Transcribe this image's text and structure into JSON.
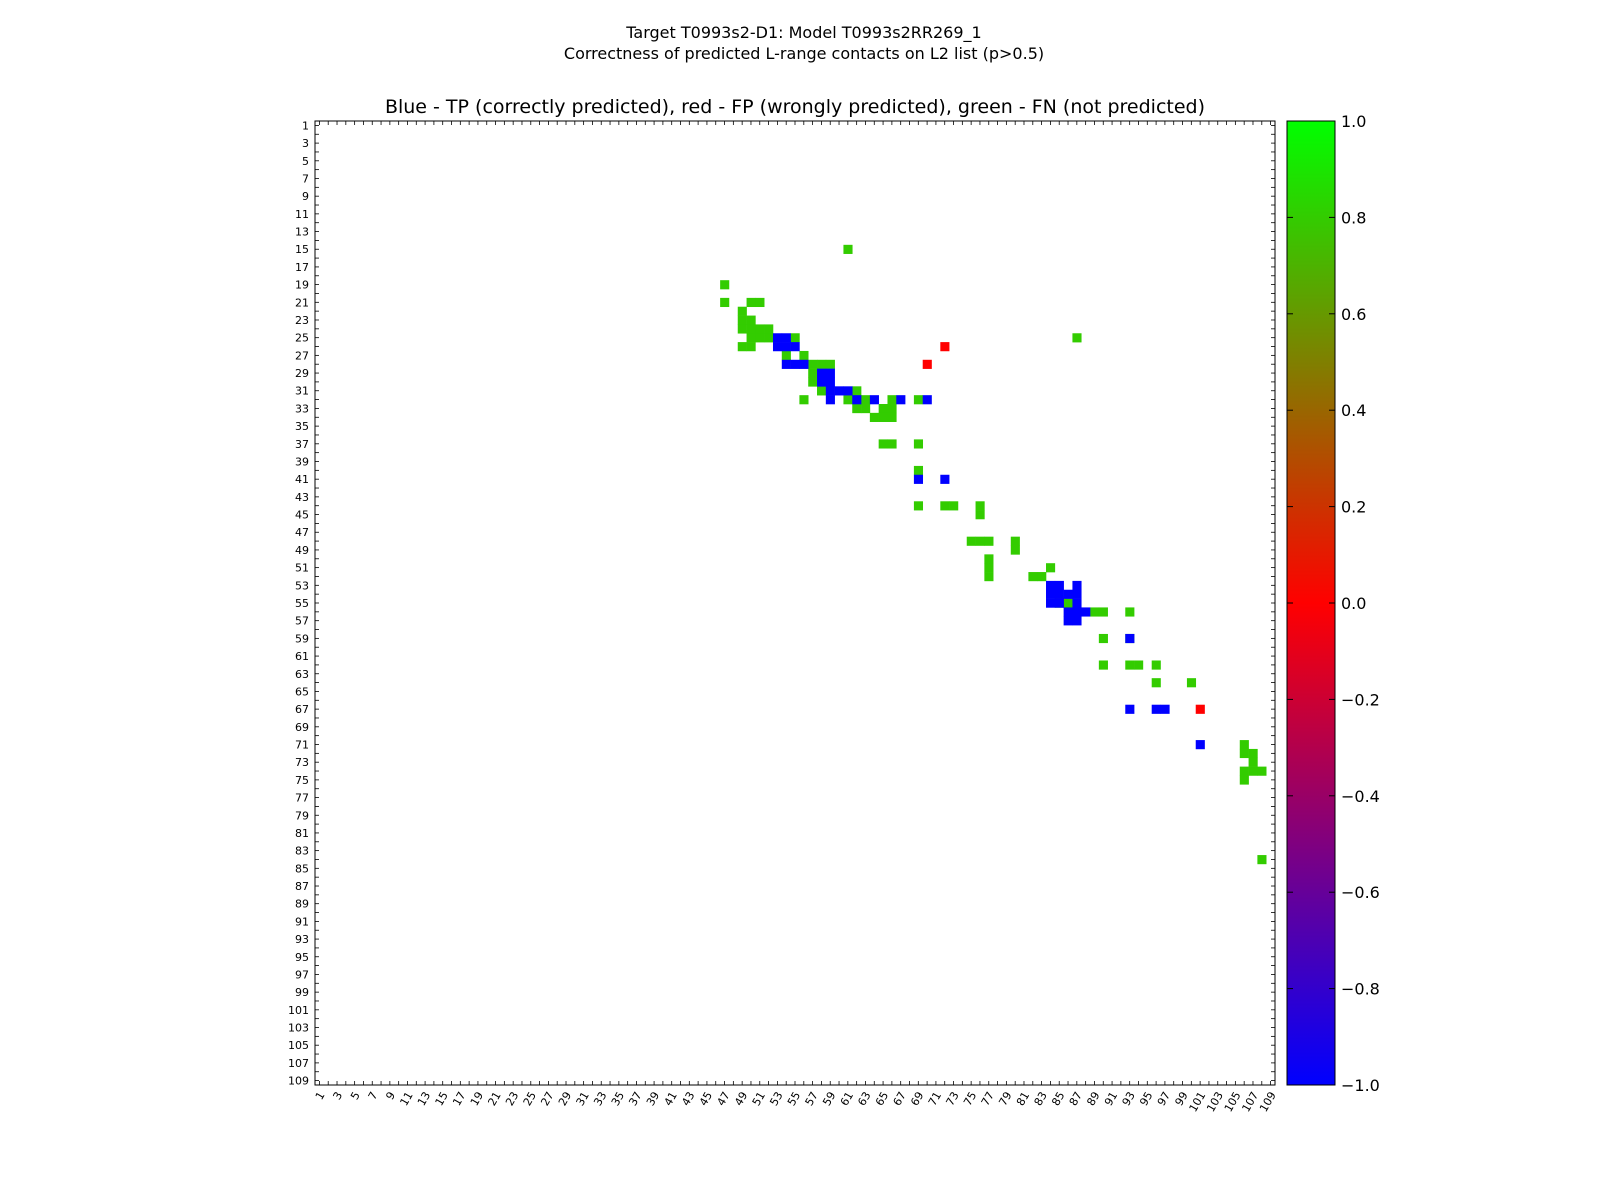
{
  "chart_data": {
    "type": "heatmap",
    "suptitle_line1": "Target T0993s2-D1: Model T0993s2RR269_1",
    "suptitle_line2": "Correctness of predicted L-range contacts on L2 list (p>0.5)",
    "title": "Blue - TP (correctly predicted), red - FP (wrongly predicted), green - FN (not predicted)",
    "axis_range": [
      1,
      109
    ],
    "x_tick_labels": [
      "1",
      "3",
      "5",
      "7",
      "9",
      "11",
      "13",
      "15",
      "17",
      "19",
      "21",
      "23",
      "25",
      "27",
      "29",
      "31",
      "33",
      "35",
      "37",
      "39",
      "41",
      "43",
      "45",
      "47",
      "49",
      "51",
      "53",
      "55",
      "57",
      "59",
      "61",
      "63",
      "65",
      "67",
      "69",
      "71",
      "73",
      "75",
      "77",
      "79",
      "81",
      "83",
      "85",
      "87",
      "89",
      "91",
      "93",
      "95",
      "97",
      "99",
      "101",
      "103",
      "105",
      "107",
      "109"
    ],
    "y_tick_labels": [
      "1",
      "3",
      "5",
      "7",
      "9",
      "11",
      "13",
      "15",
      "17",
      "19",
      "21",
      "23",
      "25",
      "27",
      "29",
      "31",
      "33",
      "35",
      "37",
      "39",
      "41",
      "43",
      "45",
      "47",
      "49",
      "51",
      "53",
      "55",
      "57",
      "59",
      "61",
      "63",
      "65",
      "67",
      "69",
      "71",
      "73",
      "75",
      "77",
      "79",
      "81",
      "83",
      "85",
      "87",
      "89",
      "91",
      "93",
      "95",
      "97",
      "99",
      "101",
      "103",
      "105",
      "107",
      "109"
    ],
    "colorbar": {
      "min": -1.0,
      "max": 1.0,
      "tick_labels": [
        "1.0",
        "0.8",
        "0.6",
        "0.4",
        "0.2",
        "0.0",
        "−0.2",
        "−0.4",
        "−0.6",
        "−0.8",
        "−1.0"
      ],
      "colors": [
        "#0000ff",
        "#ff0000",
        "#00ff00"
      ]
    },
    "legend": {
      "tp_color": "#0000ff",
      "fp_color": "#ff0000",
      "fn_color": "#33cc00"
    },
    "cell_values": {
      "tp": -1,
      "fp": 0,
      "fn": 0.8
    },
    "tp": [
      [
        25,
        53
      ],
      [
        25,
        54
      ],
      [
        26,
        53
      ],
      [
        26,
        54
      ],
      [
        26,
        55
      ],
      [
        28,
        54
      ],
      [
        28,
        55
      ],
      [
        28,
        56
      ],
      [
        29,
        58
      ],
      [
        29,
        59
      ],
      [
        30,
        58
      ],
      [
        30,
        59
      ],
      [
        31,
        59
      ],
      [
        31,
        60
      ],
      [
        31,
        61
      ],
      [
        32,
        62
      ],
      [
        32,
        64
      ],
      [
        32,
        67
      ],
      [
        32,
        70
      ],
      [
        32,
        59
      ],
      [
        41,
        69
      ],
      [
        41,
        72
      ],
      [
        53,
        84
      ],
      [
        53,
        85
      ],
      [
        53,
        87
      ],
      [
        54,
        84
      ],
      [
        54,
        85
      ],
      [
        54,
        86
      ],
      [
        54,
        87
      ],
      [
        55,
        84
      ],
      [
        55,
        85
      ],
      [
        55,
        87
      ],
      [
        56,
        86
      ],
      [
        56,
        87
      ],
      [
        56,
        88
      ],
      [
        57,
        86
      ],
      [
        57,
        87
      ],
      [
        59,
        93
      ],
      [
        67,
        93
      ],
      [
        67,
        96
      ],
      [
        67,
        97
      ],
      [
        71,
        101
      ]
    ],
    "fp": [
      [
        26,
        72
      ],
      [
        28,
        70
      ],
      [
        67,
        101
      ]
    ],
    "fn": [
      [
        15,
        61
      ],
      [
        19,
        47
      ],
      [
        21,
        47
      ],
      [
        21,
        50
      ],
      [
        21,
        51
      ],
      [
        22,
        49
      ],
      [
        23,
        49
      ],
      [
        23,
        50
      ],
      [
        24,
        49
      ],
      [
        24,
        50
      ],
      [
        24,
        51
      ],
      [
        24,
        52
      ],
      [
        25,
        50
      ],
      [
        25,
        51
      ],
      [
        25,
        52
      ],
      [
        25,
        55
      ],
      [
        25,
        87
      ],
      [
        26,
        49
      ],
      [
        26,
        50
      ],
      [
        27,
        54
      ],
      [
        27,
        56
      ],
      [
        28,
        57
      ],
      [
        28,
        58
      ],
      [
        28,
        59
      ],
      [
        29,
        57
      ],
      [
        30,
        57
      ],
      [
        31,
        58
      ],
      [
        31,
        62
      ],
      [
        32,
        56
      ],
      [
        32,
        61
      ],
      [
        32,
        62
      ],
      [
        32,
        63
      ],
      [
        32,
        66
      ],
      [
        32,
        69
      ],
      [
        33,
        62
      ],
      [
        33,
        63
      ],
      [
        33,
        65
      ],
      [
        33,
        66
      ],
      [
        34,
        64
      ],
      [
        34,
        65
      ],
      [
        34,
        66
      ],
      [
        37,
        65
      ],
      [
        37,
        66
      ],
      [
        37,
        69
      ],
      [
        40,
        69
      ],
      [
        44,
        69
      ],
      [
        44,
        72
      ],
      [
        44,
        73
      ],
      [
        44,
        76
      ],
      [
        45,
        76
      ],
      [
        48,
        75
      ],
      [
        48,
        76
      ],
      [
        48,
        77
      ],
      [
        48,
        80
      ],
      [
        49,
        80
      ],
      [
        50,
        77
      ],
      [
        51,
        77
      ],
      [
        51,
        84
      ],
      [
        52,
        77
      ],
      [
        52,
        82
      ],
      [
        52,
        83
      ],
      [
        55,
        85
      ],
      [
        55,
        86
      ],
      [
        56,
        89
      ],
      [
        56,
        90
      ],
      [
        56,
        93
      ],
      [
        59,
        90
      ],
      [
        59,
        93
      ],
      [
        62,
        90
      ],
      [
        62,
        93
      ],
      [
        62,
        94
      ],
      [
        62,
        96
      ],
      [
        64,
        96
      ],
      [
        64,
        100
      ],
      [
        71,
        106
      ],
      [
        72,
        106
      ],
      [
        72,
        107
      ],
      [
        73,
        107
      ],
      [
        74,
        106
      ],
      [
        74,
        107
      ],
      [
        74,
        108
      ],
      [
        75,
        106
      ],
      [
        84,
        108
      ]
    ]
  }
}
